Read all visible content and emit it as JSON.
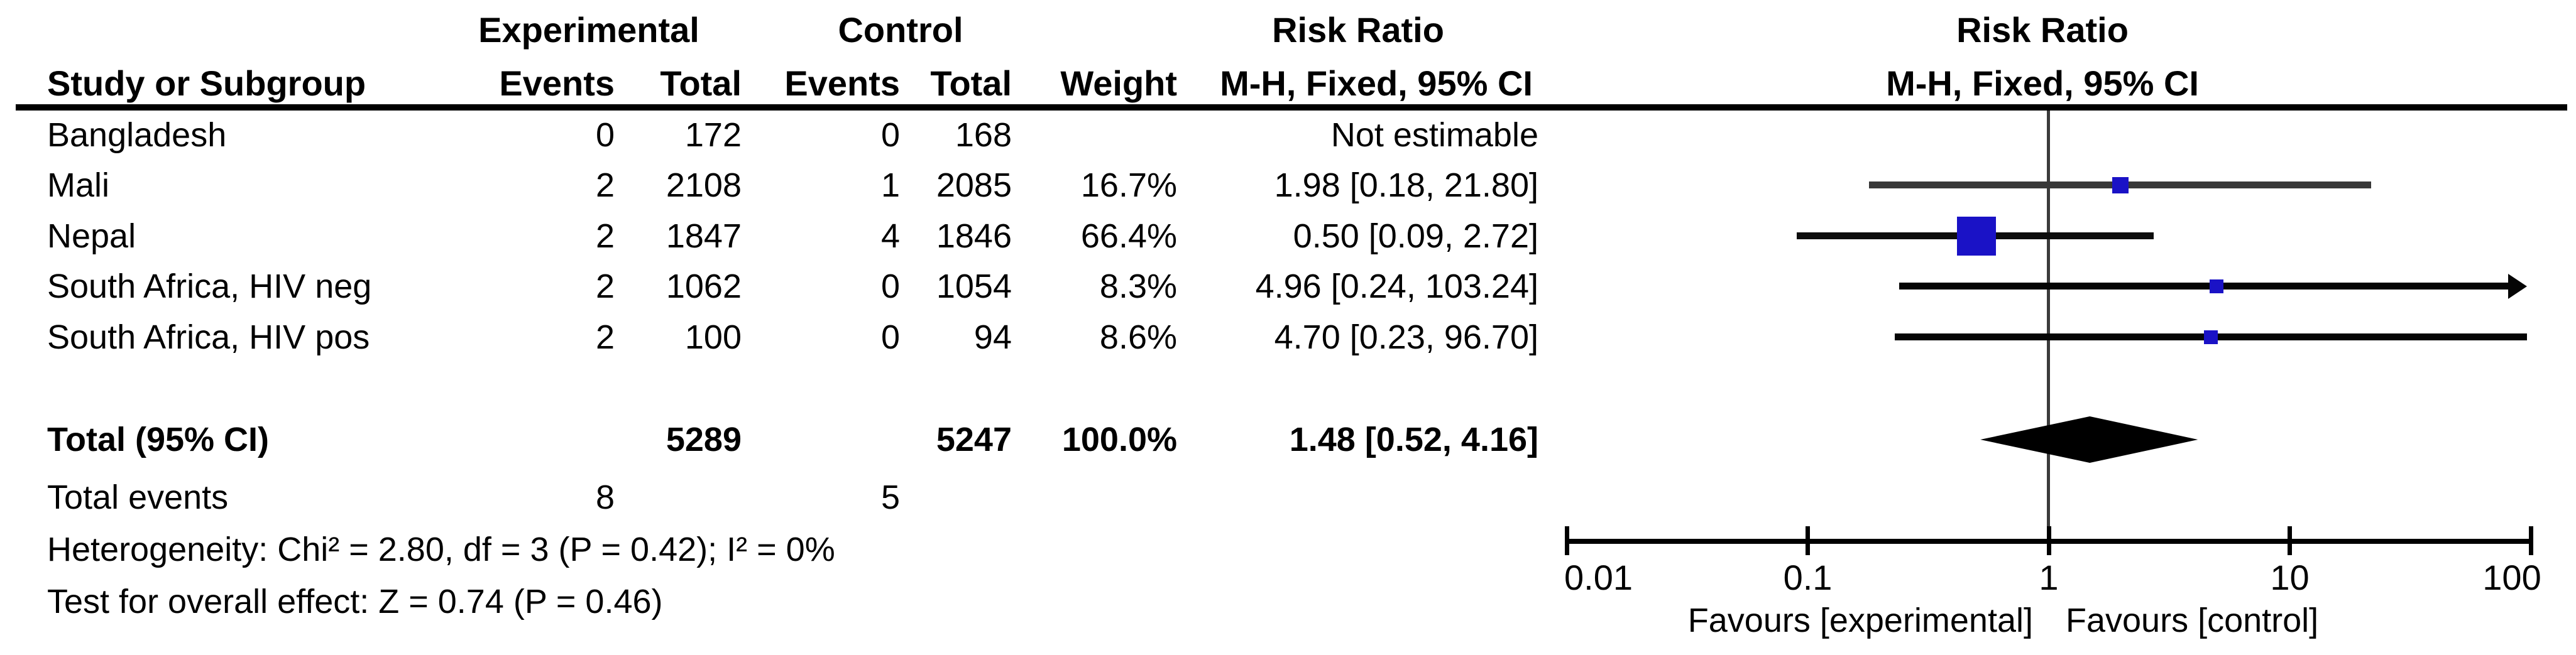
{
  "table": {
    "headers": {
      "group_experimental": "Experimental",
      "group_control": "Control",
      "risk_ratio": "Risk Ratio",
      "col_study": "Study or Subgroup",
      "col_events": "Events",
      "col_total": "Total",
      "col_weight": "Weight",
      "col_mh": "M-H, Fixed, 95% CI",
      "plot_title_line1": "Risk Ratio",
      "plot_title_line2": "M-H, Fixed, 95% CI"
    },
    "rows": [
      {
        "study": "Bangladesh",
        "exp_events": "0",
        "exp_total": "172",
        "ctrl_events": "0",
        "ctrl_total": "168",
        "weight": "",
        "rr_text": "Not estimable"
      },
      {
        "study": "Mali",
        "exp_events": "2",
        "exp_total": "2108",
        "ctrl_events": "1",
        "ctrl_total": "2085",
        "weight": "16.7%",
        "rr_text": "1.98 [0.18, 21.80]"
      },
      {
        "study": "Nepal",
        "exp_events": "2",
        "exp_total": "1847",
        "ctrl_events": "4",
        "ctrl_total": "1846",
        "weight": "66.4%",
        "rr_text": "0.50 [0.09, 2.72]"
      },
      {
        "study": "South Africa, HIV neg",
        "exp_events": "2",
        "exp_total": "1062",
        "ctrl_events": "0",
        "ctrl_total": "1054",
        "weight": "8.3%",
        "rr_text": "4.96 [0.24, 103.24]"
      },
      {
        "study": "South Africa, HIV pos",
        "exp_events": "2",
        "exp_total": "100",
        "ctrl_events": "0",
        "ctrl_total": "94",
        "weight": "8.6%",
        "rr_text": "4.70 [0.23, 96.70]"
      }
    ],
    "total_row": {
      "label": "Total (95% CI)",
      "exp_total": "5289",
      "ctrl_total": "5247",
      "weight": "100.0%",
      "rr_text": "1.48 [0.52, 4.16]"
    },
    "total_events": {
      "label": "Total events",
      "exp": "8",
      "ctrl": "5"
    },
    "heterogeneity": "Heterogeneity: Chi² = 2.80, df = 3 (P = 0.42); I² = 0%",
    "overall_effect": "Test for overall effect: Z = 0.74 (P = 0.46)"
  },
  "chart_data": {
    "type": "forest",
    "effect_measure": "Risk Ratio",
    "method": "M-H, Fixed, 95% CI",
    "x_scale": "log10",
    "axis_range": [
      0.01,
      100
    ],
    "axis_ticks": [
      0.01,
      0.1,
      1,
      10,
      100
    ],
    "axis_tick_labels": [
      "0.01",
      "0.1",
      "1",
      "10",
      "100"
    ],
    "null_line_value": 1,
    "favours_left": "Favours [experimental]",
    "favours_right": "Favours [control]",
    "marker_color": "#1a12c6",
    "diamond_color": "#000000",
    "studies": [
      {
        "name": "Bangladesh",
        "estimable": false,
        "rr": null,
        "ci_low": null,
        "ci_high": null,
        "weight_pct": null,
        "marker_size": 0,
        "line_color": "#000000"
      },
      {
        "name": "Mali",
        "estimable": true,
        "rr": 1.98,
        "ci_low": 0.18,
        "ci_high": 21.8,
        "weight_pct": 16.7,
        "marker_size": 26,
        "line_color": "#383838"
      },
      {
        "name": "Nepal",
        "estimable": true,
        "rr": 0.5,
        "ci_low": 0.09,
        "ci_high": 2.72,
        "weight_pct": 66.4,
        "marker_size": 62,
        "line_color": "#0d0d0d"
      },
      {
        "name": "South Africa, HIV neg",
        "estimable": true,
        "rr": 4.96,
        "ci_low": 0.24,
        "ci_high": 103.24,
        "weight_pct": 8.3,
        "marker_size": 22,
        "line_color": "#050505"
      },
      {
        "name": "South Africa, HIV pos",
        "estimable": true,
        "rr": 4.7,
        "ci_low": 0.23,
        "ci_high": 96.7,
        "weight_pct": 8.6,
        "marker_size": 22,
        "line_color": "#050505"
      }
    ],
    "total": {
      "label": "Total (95% CI)",
      "rr": 1.48,
      "ci_low": 0.52,
      "ci_high": 4.16,
      "weight_pct": 100.0
    }
  }
}
